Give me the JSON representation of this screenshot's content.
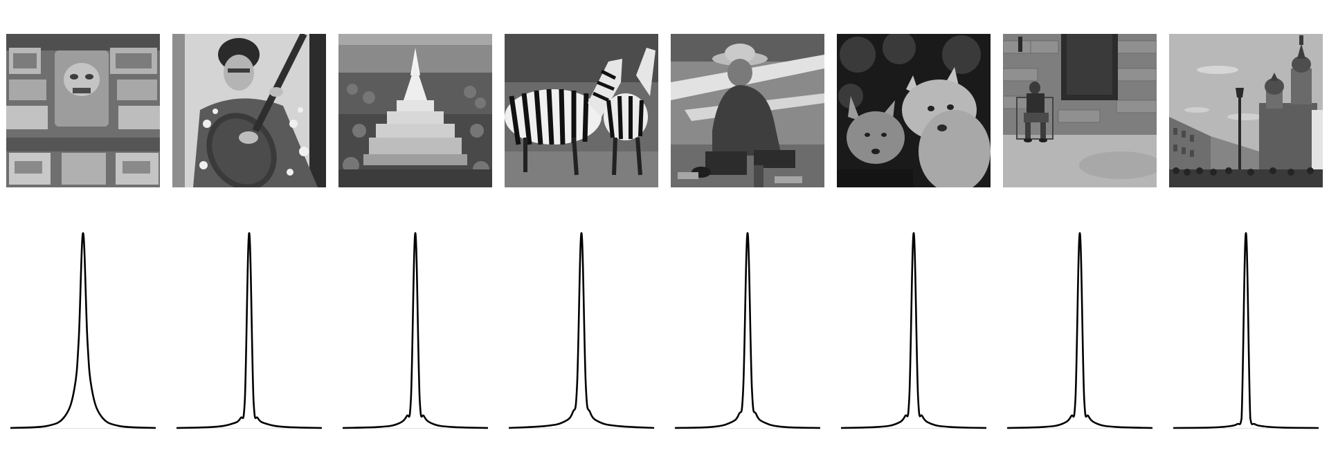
{
  "figure": {
    "panels": [
      {
        "id": "1",
        "photo_subject": "carved-stone-relief-icon"
      },
      {
        "id": "2",
        "photo_subject": "woman-playing-lute-icon"
      },
      {
        "id": "3",
        "photo_subject": "white-pagoda-landscape-icon"
      },
      {
        "id": "4",
        "photo_subject": "zebras-icon"
      },
      {
        "id": "5",
        "photo_subject": "man-in-straw-hat-icon"
      },
      {
        "id": "6",
        "photo_subject": "foxes-icon"
      },
      {
        "id": "7",
        "photo_subject": "person-sitting-by-wall-icon"
      },
      {
        "id": "8",
        "photo_subject": "onion-domed-cathedral-street-icon"
      }
    ]
  },
  "chart_data": [
    {
      "type": "line",
      "panel": 1,
      "x": [
        -1,
        -0.5,
        -0.25,
        -0.12,
        -0.06,
        0,
        0.06,
        0.12,
        0.25,
        0.5,
        1
      ],
      "values": [
        0.0,
        0.01,
        0.06,
        0.2,
        0.45,
        1.0,
        0.45,
        0.2,
        0.06,
        0.01,
        0.0
      ],
      "xlim": [
        -1,
        1
      ],
      "ylim": [
        0,
        1
      ],
      "grid": false
    },
    {
      "type": "line",
      "panel": 2,
      "x": [
        -1,
        -0.5,
        -0.25,
        -0.12,
        -0.06,
        0,
        0.06,
        0.12,
        0.25,
        0.5,
        1
      ],
      "values": [
        0.0,
        0.005,
        0.02,
        0.05,
        0.14,
        1.0,
        0.14,
        0.05,
        0.02,
        0.005,
        0.0
      ],
      "xlim": [
        -1,
        1
      ],
      "ylim": [
        0,
        1
      ],
      "grid": false
    },
    {
      "type": "line",
      "panel": 3,
      "x": [
        -1,
        -0.5,
        -0.25,
        -0.12,
        -0.06,
        0,
        0.06,
        0.12,
        0.25,
        0.5,
        1
      ],
      "values": [
        0.0,
        0.005,
        0.02,
        0.06,
        0.15,
        1.0,
        0.15,
        0.06,
        0.02,
        0.005,
        0.0
      ],
      "xlim": [
        -1,
        1
      ],
      "ylim": [
        0,
        1
      ],
      "grid": false
    },
    {
      "type": "line",
      "panel": 4,
      "x": [
        -1,
        -0.5,
        -0.25,
        -0.12,
        -0.06,
        0,
        0.06,
        0.12,
        0.25,
        0.5,
        1
      ],
      "values": [
        0.0,
        0.01,
        0.03,
        0.08,
        0.22,
        1.0,
        0.22,
        0.08,
        0.03,
        0.01,
        0.0
      ],
      "xlim": [
        -1,
        1
      ],
      "ylim": [
        0,
        1
      ],
      "grid": false
    },
    {
      "type": "line",
      "panel": 5,
      "x": [
        -1,
        -0.5,
        -0.25,
        -0.12,
        -0.06,
        0,
        0.06,
        0.12,
        0.25,
        0.5,
        1
      ],
      "values": [
        0.0,
        0.005,
        0.025,
        0.07,
        0.2,
        1.0,
        0.2,
        0.07,
        0.025,
        0.005,
        0.0
      ],
      "xlim": [
        -1,
        1
      ],
      "ylim": [
        0,
        1
      ],
      "grid": false
    },
    {
      "type": "line",
      "panel": 6,
      "x": [
        -1,
        -0.5,
        -0.25,
        -0.12,
        -0.06,
        0,
        0.06,
        0.12,
        0.25,
        0.5,
        1
      ],
      "values": [
        0.0,
        0.005,
        0.02,
        0.06,
        0.16,
        1.0,
        0.16,
        0.06,
        0.02,
        0.005,
        0.0
      ],
      "xlim": [
        -1,
        1
      ],
      "ylim": [
        0,
        1
      ],
      "grid": false
    },
    {
      "type": "line",
      "panel": 7,
      "x": [
        -1,
        -0.5,
        -0.25,
        -0.12,
        -0.06,
        0,
        0.06,
        0.12,
        0.25,
        0.5,
        1
      ],
      "values": [
        0.0,
        0.005,
        0.02,
        0.06,
        0.15,
        1.0,
        0.15,
        0.06,
        0.02,
        0.005,
        0.0
      ],
      "xlim": [
        -1,
        1
      ],
      "ylim": [
        0,
        1
      ],
      "grid": false
    },
    {
      "type": "line",
      "panel": 8,
      "x": [
        -1,
        -0.5,
        -0.25,
        -0.12,
        -0.06,
        0,
        0.06,
        0.12,
        0.25,
        0.5,
        1
      ],
      "values": [
        0.0,
        0.002,
        0.008,
        0.02,
        0.05,
        1.0,
        0.05,
        0.02,
        0.008,
        0.002,
        0.0
      ],
      "xlim": [
        -1,
        1
      ],
      "ylim": [
        0,
        1
      ],
      "grid": false
    }
  ]
}
